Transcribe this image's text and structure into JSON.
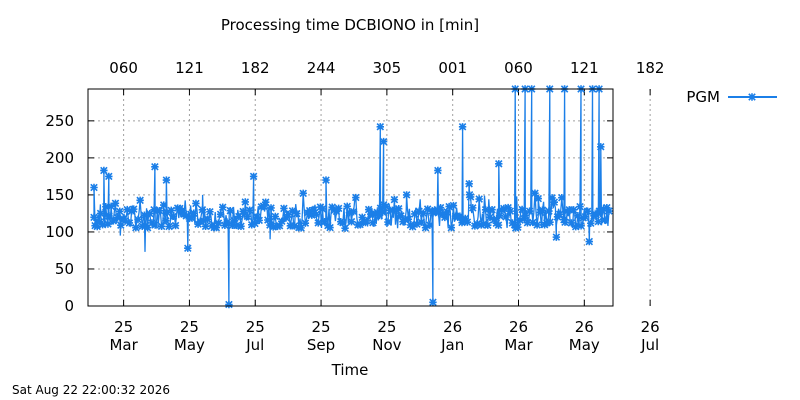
{
  "chart_data": {
    "type": "line",
    "title": "Processing time DCBIONO in [min]",
    "xlabel": "Time",
    "ylabel": "",
    "ylim": [
      0,
      293
    ],
    "yticks": [
      0,
      50,
      100,
      150,
      200,
      250
    ],
    "x_bottom_ticks": [
      {
        "day": "25",
        "month": "Mar"
      },
      {
        "day": "25",
        "month": "May"
      },
      {
        "day": "25",
        "month": "Jul"
      },
      {
        "day": "25",
        "month": "Sep"
      },
      {
        "day": "25",
        "month": "Nov"
      },
      {
        "day": "26",
        "month": "Jan"
      },
      {
        "day": "26",
        "month": "Mar"
      },
      {
        "day": "26",
        "month": "May"
      },
      {
        "day": "26",
        "month": "Jul"
      }
    ],
    "x_top_ticks": [
      "060",
      "121",
      "182",
      "244",
      "305",
      "001",
      "060",
      "121",
      "182"
    ],
    "grid": true,
    "legend_position": "top-right outside",
    "series": [
      {
        "name": "PGM",
        "color": "#1b7fe8",
        "marker": "x-star",
        "baseline_range": [
          100,
          140
        ],
        "x_span_months": [
          0,
          8.3
        ],
        "notable_points": [
          {
            "month": 0.0,
            "value": 160
          },
          {
            "month": 0.2,
            "value": 125
          },
          {
            "month": 0.3,
            "value": 183
          },
          {
            "month": 0.45,
            "value": 175
          },
          {
            "month": 0.8,
            "value": 95
          },
          {
            "month": 1.55,
            "value": 73
          },
          {
            "month": 1.85,
            "value": 188
          },
          {
            "month": 2.2,
            "value": 170
          },
          {
            "month": 2.85,
            "value": 78
          },
          {
            "month": 3.3,
            "value": 150
          },
          {
            "month": 4.1,
            "value": 2
          },
          {
            "month": 4.85,
            "value": 175
          },
          {
            "month": 5.35,
            "value": 90
          },
          {
            "month": 7.05,
            "value": 170
          },
          {
            "month": 8.7,
            "value": 242
          },
          {
            "month": 8.8,
            "value": 222
          },
          {
            "month": 9.5,
            "value": 150
          },
          {
            "month": 10.3,
            "value": 5
          },
          {
            "month": 10.45,
            "value": 183
          },
          {
            "month": 11.2,
            "value": 242
          },
          {
            "month": 11.4,
            "value": 165
          },
          {
            "month": 12.3,
            "value": 192
          },
          {
            "month": 12.8,
            "value": 293
          },
          {
            "month": 13.1,
            "value": 293
          },
          {
            "month": 13.3,
            "value": 293
          },
          {
            "month": 13.5,
            "value": 145
          },
          {
            "month": 13.85,
            "value": 293
          },
          {
            "month": 14.05,
            "value": 93
          },
          {
            "month": 14.3,
            "value": 293
          },
          {
            "month": 14.8,
            "value": 293
          },
          {
            "month": 15.05,
            "value": 87
          },
          {
            "month": 15.15,
            "value": 293
          },
          {
            "month": 15.35,
            "value": 293
          },
          {
            "month": 15.4,
            "value": 215
          }
        ]
      }
    ]
  },
  "timestamp": "Sat Aug 22 22:00:32 2026"
}
